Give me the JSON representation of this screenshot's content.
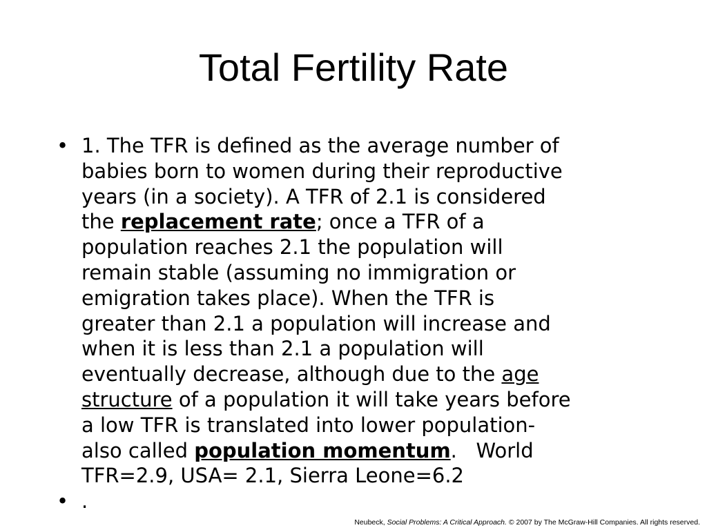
{
  "slide": {
    "title": "Total Fertility Rate",
    "bullet_char": "•",
    "bullet1": {
      "lines": [
        {
          "parts": [
            {
              "t": "1. The TFR is defined as the average number of"
            }
          ]
        },
        {
          "parts": [
            {
              "t": "babies born to women during their reproductive"
            }
          ]
        },
        {
          "parts": [
            {
              "t": "years (in a society). A TFR of 2.1 is considered"
            }
          ]
        },
        {
          "parts": [
            {
              "t": "the "
            },
            {
              "t": "replacement rate",
              "s": "bu"
            },
            {
              "t": "; once a TFR of a"
            }
          ]
        },
        {
          "parts": [
            {
              "t": "population reaches 2.1 the population will"
            }
          ]
        },
        {
          "parts": [
            {
              "t": "remain stable (assuming no immigration or"
            }
          ]
        },
        {
          "parts": [
            {
              "t": "emigration takes place). When the TFR is"
            }
          ]
        },
        {
          "parts": [
            {
              "t": "greater than 2.1 a population will increase and"
            }
          ]
        },
        {
          "parts": [
            {
              "t": "when it is less than 2.1 a population will"
            }
          ]
        },
        {
          "parts": [
            {
              "t": "eventually decrease, although due to the "
            },
            {
              "t": "age",
              "s": "u"
            }
          ]
        },
        {
          "parts": [
            {
              "t": "structure",
              "s": "u"
            },
            {
              "t": " of a population it will take years before"
            }
          ]
        },
        {
          "parts": [
            {
              "t": "a low TFR is translated into lower population-"
            }
          ]
        },
        {
          "parts": [
            {
              "t": "also called "
            },
            {
              "t": "population momentum",
              "s": "bu"
            },
            {
              "t": ".   World"
            }
          ]
        },
        {
          "parts": [
            {
              "t": "TFR=2.9, USA= 2.1, Sierra Leone=6.2"
            }
          ]
        }
      ]
    },
    "bullet2": {
      "text": "."
    },
    "footer": {
      "author": "Neubeck, ",
      "book_title": "Social Problems: A Critical Approach.",
      "rights": " © 2007 by The McGraw-Hill Companies. All rights reserved."
    }
  }
}
